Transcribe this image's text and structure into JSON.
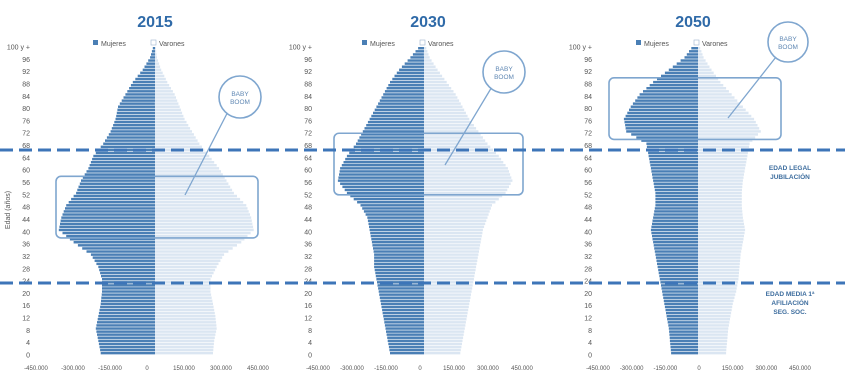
{
  "chart_data": [
    {
      "type": "population-pyramid",
      "title": "2015",
      "ylabel": "Edad (años)",
      "ages": [
        0,
        4,
        8,
        12,
        16,
        20,
        24,
        28,
        32,
        36,
        40,
        44,
        48,
        52,
        56,
        60,
        64,
        68,
        72,
        76,
        80,
        84,
        88,
        92,
        96,
        "100 y +"
      ],
      "series": [
        {
          "name": "Mujeres",
          "side": "left",
          "values": [
            220000,
            230000,
            240000,
            230000,
            220000,
            215000,
            215000,
            230000,
            260000,
            330000,
            390000,
            380000,
            360000,
            320000,
            300000,
            270000,
            250000,
            210000,
            180000,
            160000,
            150000,
            120000,
            90000,
            50000,
            20000,
            5000
          ]
        },
        {
          "name": "Varones",
          "side": "right",
          "values": [
            235000,
            240000,
            250000,
            245000,
            235000,
            225000,
            225000,
            250000,
            280000,
            350000,
            400000,
            390000,
            370000,
            320000,
            290000,
            260000,
            220000,
            180000,
            150000,
            120000,
            100000,
            80000,
            50000,
            25000,
            8000,
            2000
          ]
        }
      ],
      "x_ticks": [
        "-450.000",
        "-300.000",
        "-150.000",
        "0",
        "150.000",
        "300.000",
        "450.000"
      ],
      "xlim": [
        -450000,
        450000
      ],
      "annotation": "BABY BOOM",
      "highlight_ages": [
        38,
        58
      ]
    },
    {
      "type": "population-pyramid",
      "title": "2030",
      "ages": [
        0,
        4,
        8,
        12,
        16,
        20,
        24,
        28,
        32,
        36,
        40,
        44,
        48,
        52,
        56,
        60,
        64,
        68,
        72,
        76,
        80,
        84,
        88,
        92,
        96,
        "100 y +"
      ],
      "series": [
        {
          "name": "Mujeres",
          "side": "left",
          "values": [
            150000,
            160000,
            170000,
            180000,
            190000,
            200000,
            210000,
            220000,
            220000,
            230000,
            240000,
            250000,
            280000,
            340000,
            380000,
            370000,
            340000,
            300000,
            270000,
            240000,
            210000,
            180000,
            150000,
            110000,
            60000,
            15000
          ]
        },
        {
          "name": "Varones",
          "side": "right",
          "values": [
            160000,
            170000,
            180000,
            190000,
            200000,
            210000,
            220000,
            230000,
            240000,
            250000,
            260000,
            280000,
            300000,
            360000,
            390000,
            370000,
            330000,
            280000,
            240000,
            200000,
            170000,
            140000,
            100000,
            60000,
            25000,
            5000
          ]
        }
      ],
      "x_ticks": [
        "-450.000",
        "-300.000",
        "-150.000",
        "0",
        "150.000",
        "300.000",
        "450.000"
      ],
      "xlim": [
        -450000,
        450000
      ],
      "annotation": "BABY BOOM",
      "highlight_ages": [
        52,
        72
      ]
    },
    {
      "type": "population-pyramid",
      "title": "2050",
      "ages": [
        0,
        4,
        8,
        12,
        16,
        20,
        24,
        28,
        32,
        36,
        40,
        44,
        48,
        52,
        56,
        60,
        64,
        68,
        72,
        76,
        80,
        84,
        88,
        92,
        96,
        "100 y +"
      ],
      "series": [
        {
          "name": "Mujeres",
          "side": "left",
          "values": [
            120000,
            125000,
            130000,
            140000,
            150000,
            160000,
            170000,
            180000,
            190000,
            200000,
            210000,
            200000,
            190000,
            190000,
            200000,
            210000,
            220000,
            230000,
            320000,
            330000,
            300000,
            260000,
            200000,
            130000,
            60000,
            20000
          ]
        },
        {
          "name": "Varones",
          "side": "right",
          "values": [
            125000,
            130000,
            135000,
            145000,
            155000,
            170000,
            180000,
            185000,
            190000,
            200000,
            210000,
            200000,
            195000,
            195000,
            200000,
            210000,
            220000,
            230000,
            280000,
            250000,
            200000,
            150000,
            100000,
            60000,
            25000,
            5000
          ]
        }
      ],
      "x_ticks": [
        "-450.000",
        "-300.000",
        "-150.000",
        "0",
        "150.000",
        "300.000",
        "450.000"
      ],
      "xlim": [
        -450000,
        450000
      ],
      "annotation": "BABY BOOM",
      "highlight_ages": [
        70,
        90
      ]
    }
  ],
  "reference_lines": [
    {
      "age": 66,
      "label": "EDAD LEGAL JUBILACIÓN"
    },
    {
      "age": 24,
      "label": "EDAD MEDIA 1ª AFILIACIÓN SEG. SOC."
    }
  ],
  "colors": {
    "mujeres": "#4a7fb5",
    "varones": "#dbe6f2",
    "accent": "#3d75b8",
    "title": "#2f6aa8"
  }
}
